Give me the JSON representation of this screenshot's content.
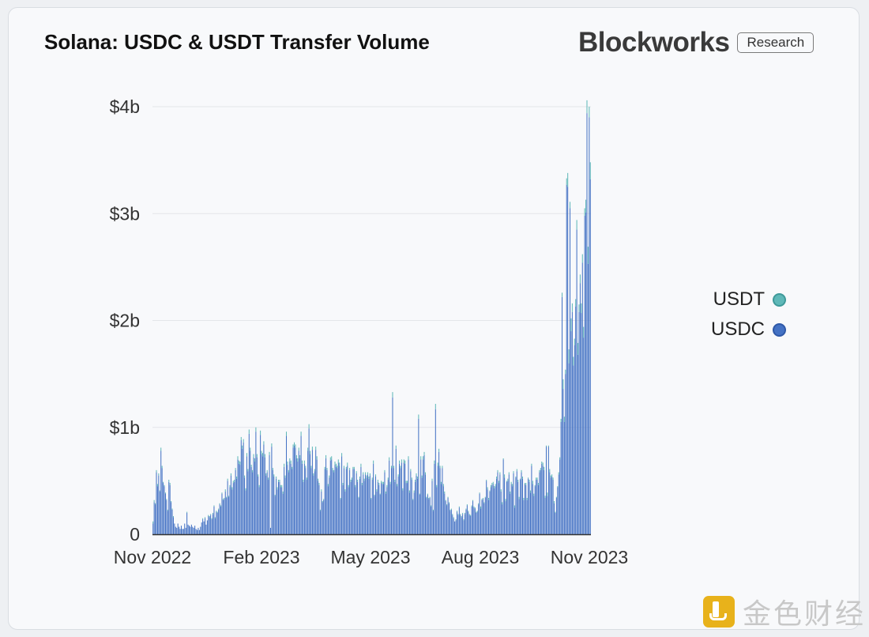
{
  "header": {
    "title": "Solana: USDC & USDT Transfer Volume",
    "brand_name": "Blockworks",
    "brand_tag": "Research"
  },
  "watermark": {
    "text": "金色财经"
  },
  "colors": {
    "usdc": "#4472c4",
    "usdt": "#5fb8b8",
    "grid": "#e4e6ea",
    "axis": "#333333"
  },
  "chart_data": {
    "type": "bar",
    "stacked": true,
    "title": "Solana: USDC & USDT Transfer Volume",
    "xlabel": "",
    "ylabel": "",
    "x_start": "2022-11-01",
    "x_ticks": [
      "Nov 2022",
      "Feb 2023",
      "May 2023",
      "Aug 2023",
      "Nov 2023"
    ],
    "y_ticks": [
      {
        "value": 0,
        "label": "0"
      },
      {
        "value": 1,
        "label": "$1b"
      },
      {
        "value": 2,
        "label": "$2b"
      },
      {
        "value": 3,
        "label": "$3b"
      },
      {
        "value": 4,
        "label": "$4b"
      }
    ],
    "ylim": [
      0,
      4
    ],
    "y_unit": "$b",
    "grid": true,
    "legend_position": "right",
    "series": [
      {
        "name": "USDC",
        "values": [
          0.1,
          0.3,
          0.28,
          0.58,
          0.45,
          0.55,
          0.4,
          0.78,
          0.62,
          0.48,
          0.45,
          0.38,
          0.32,
          0.22,
          0.49,
          0.46,
          0.3,
          0.23,
          0.16,
          0.1,
          0.07,
          0.06,
          0.1,
          0.07,
          0.05,
          0.08,
          0.05,
          0.05,
          0.1,
          0.06,
          0.2,
          0.09,
          0.08,
          0.07,
          0.09,
          0.07,
          0.06,
          0.08,
          0.05,
          0.04,
          0.06,
          0.04,
          0.07,
          0.11,
          0.14,
          0.12,
          0.15,
          0.09,
          0.13,
          0.17,
          0.16,
          0.18,
          0.14,
          0.19,
          0.26,
          0.15,
          0.21,
          0.2,
          0.23,
          0.28,
          0.26,
          0.38,
          0.32,
          0.33,
          0.4,
          0.34,
          0.5,
          0.35,
          0.44,
          0.55,
          0.42,
          0.48,
          0.49,
          0.6,
          0.52,
          0.7,
          0.66,
          0.65,
          0.88,
          0.8,
          0.86,
          0.53,
          0.41,
          0.73,
          0.59,
          0.94,
          0.78,
          0.63,
          0.58,
          0.72,
          0.68,
          0.96,
          0.72,
          0.54,
          0.44,
          0.93,
          0.75,
          0.73,
          0.84,
          0.72,
          0.55,
          0.58,
          0.51,
          0.74,
          0.06,
          0.82,
          0.6,
          0.54,
          0.36,
          0.52,
          0.42,
          0.49,
          0.49,
          0.44,
          0.44,
          0.38,
          0.63,
          0.53,
          0.92,
          0.65,
          0.58,
          0.68,
          0.66,
          0.61,
          0.81,
          0.83,
          0.81,
          0.71,
          0.68,
          0.78,
          0.71,
          0.92,
          0.66,
          0.49,
          0.66,
          0.62,
          0.51,
          0.78,
          0.99,
          0.75,
          0.62,
          0.79,
          0.55,
          0.59,
          0.79,
          0.7,
          0.5,
          0.46,
          0.22,
          0.4,
          0.3,
          0.32,
          0.61,
          0.71,
          0.6,
          0.45,
          0.53,
          0.69,
          0.7,
          0.6,
          0.58,
          0.65,
          0.63,
          0.62,
          0.67,
          0.64,
          0.33,
          0.73,
          0.46,
          0.62,
          0.4,
          0.61,
          0.64,
          0.44,
          0.6,
          0.49,
          0.51,
          0.61,
          0.61,
          0.44,
          0.57,
          0.49,
          0.34,
          0.52,
          0.63,
          0.46,
          0.56,
          0.5,
          0.56,
          0.53,
          0.56,
          0.52,
          0.55,
          0.33,
          0.51,
          0.66,
          0.36,
          0.54,
          0.4,
          0.49,
          0.46,
          0.37,
          0.48,
          0.47,
          0.47,
          0.58,
          0.38,
          0.44,
          0.51,
          0.69,
          0.47,
          0.62,
          1.28,
          0.62,
          0.49,
          0.8,
          0.45,
          0.54,
          0.66,
          0.62,
          0.67,
          0.41,
          0.67,
          0.66,
          0.48,
          0.48,
          0.7,
          0.39,
          0.59,
          0.51,
          0.32,
          0.39,
          0.49,
          0.55,
          0.52,
          1.08,
          0.37,
          0.7,
          0.53,
          0.7,
          0.74,
          0.56,
          0.34,
          0.37,
          0.33,
          0.34,
          0.26,
          0.5,
          0.22,
          0.66,
          1.17,
          0.44,
          0.64,
          0.77,
          0.62,
          0.47,
          0.62,
          0.45,
          0.38,
          0.31,
          0.27,
          0.34,
          0.29,
          0.22,
          0.23,
          0.18,
          0.15,
          0.12,
          0.13,
          0.21,
          0.18,
          0.25,
          0.18,
          0.16,
          0.19,
          0.13,
          0.19,
          0.23,
          0.27,
          0.21,
          0.18,
          0.17,
          0.26,
          0.31,
          0.25,
          0.24,
          0.2,
          0.21,
          0.28,
          0.38,
          0.24,
          0.32,
          0.33,
          0.29,
          0.34,
          0.5,
          0.42,
          0.32,
          0.4,
          0.44,
          0.46,
          0.47,
          0.43,
          0.45,
          0.52,
          0.58,
          0.48,
          0.56,
          0.4,
          0.28,
          0.7,
          0.53,
          0.31,
          0.49,
          0.5,
          0.56,
          0.38,
          0.47,
          0.45,
          0.57,
          0.25,
          0.53,
          0.59,
          0.49,
          0.33,
          0.51,
          0.58,
          0.52,
          0.32,
          0.47,
          0.46,
          0.32,
          0.52,
          0.49,
          0.39,
          0.64,
          0.47,
          0.36,
          0.45,
          0.51,
          0.51,
          0.46,
          0.58,
          0.6,
          0.66,
          0.64,
          0.6,
          0.34,
          0.82,
          0.36,
          0.82,
          0.58,
          0.53,
          0.54,
          0.51,
          0.29,
          0.2,
          0.34,
          0.44,
          0.56,
          0.7,
          1.05,
          2.22,
          1.36,
          1.05,
          1.5,
          3.27,
          3.25,
          1.6,
          3.05,
          1.9,
          2.08,
          1.58,
          1.77,
          2.13,
          2.85,
          1.68,
          2.08,
          2.35,
          2.07,
          2.54,
          1.84,
          2.98,
          3.01,
          3.94,
          2.53,
          3.9,
          3.32
        ],
        "color": "#4472c4"
      },
      {
        "name": "USDT",
        "values": [
          0.02,
          0.02,
          0.01,
          0.02,
          0.02,
          0.02,
          0.01,
          0.03,
          0.02,
          0.01,
          0.01,
          0.01,
          0.01,
          0.01,
          0.02,
          0.02,
          0.01,
          0.01,
          0.01,
          0.0,
          0.0,
          0.0,
          0.0,
          0.0,
          0.0,
          0.0,
          0.0,
          0.0,
          0.0,
          0.0,
          0.01,
          0.0,
          0.0,
          0.0,
          0.0,
          0.0,
          0.0,
          0.0,
          0.0,
          0.0,
          0.0,
          0.0,
          0.0,
          0.0,
          0.01,
          0.0,
          0.01,
          0.0,
          0.0,
          0.01,
          0.01,
          0.01,
          0.01,
          0.01,
          0.01,
          0.01,
          0.01,
          0.01,
          0.01,
          0.01,
          0.01,
          0.01,
          0.01,
          0.01,
          0.02,
          0.01,
          0.02,
          0.01,
          0.02,
          0.02,
          0.02,
          0.02,
          0.02,
          0.02,
          0.02,
          0.03,
          0.03,
          0.03,
          0.03,
          0.03,
          0.03,
          0.02,
          0.02,
          0.03,
          0.02,
          0.04,
          0.03,
          0.02,
          0.02,
          0.03,
          0.03,
          0.04,
          0.03,
          0.02,
          0.02,
          0.04,
          0.03,
          0.03,
          0.03,
          0.03,
          0.02,
          0.02,
          0.02,
          0.03,
          0.0,
          0.03,
          0.02,
          0.02,
          0.01,
          0.02,
          0.02,
          0.02,
          0.02,
          0.02,
          0.02,
          0.02,
          0.03,
          0.02,
          0.04,
          0.03,
          0.02,
          0.03,
          0.03,
          0.02,
          0.03,
          0.03,
          0.03,
          0.03,
          0.03,
          0.03,
          0.03,
          0.04,
          0.03,
          0.02,
          0.03,
          0.02,
          0.02,
          0.03,
          0.04,
          0.03,
          0.02,
          0.03,
          0.02,
          0.02,
          0.03,
          0.03,
          0.02,
          0.02,
          0.01,
          0.02,
          0.01,
          0.01,
          0.02,
          0.03,
          0.02,
          0.02,
          0.02,
          0.03,
          0.03,
          0.02,
          0.02,
          0.03,
          0.03,
          0.02,
          0.03,
          0.03,
          0.01,
          0.03,
          0.02,
          0.02,
          0.02,
          0.02,
          0.03,
          0.02,
          0.02,
          0.02,
          0.02,
          0.02,
          0.02,
          0.02,
          0.02,
          0.02,
          0.01,
          0.02,
          0.03,
          0.02,
          0.02,
          0.02,
          0.02,
          0.02,
          0.02,
          0.02,
          0.02,
          0.01,
          0.02,
          0.03,
          0.01,
          0.02,
          0.02,
          0.02,
          0.02,
          0.01,
          0.02,
          0.02,
          0.02,
          0.02,
          0.02,
          0.02,
          0.02,
          0.03,
          0.02,
          0.02,
          0.05,
          0.02,
          0.02,
          0.03,
          0.02,
          0.02,
          0.03,
          0.02,
          0.03,
          0.02,
          0.03,
          0.03,
          0.02,
          0.02,
          0.03,
          0.02,
          0.02,
          0.02,
          0.01,
          0.02,
          0.02,
          0.02,
          0.02,
          0.04,
          0.01,
          0.03,
          0.02,
          0.03,
          0.03,
          0.02,
          0.01,
          0.01,
          0.01,
          0.01,
          0.01,
          0.02,
          0.01,
          0.03,
          0.05,
          0.02,
          0.03,
          0.03,
          0.02,
          0.02,
          0.02,
          0.02,
          0.02,
          0.01,
          0.01,
          0.01,
          0.01,
          0.01,
          0.01,
          0.01,
          0.01,
          0.0,
          0.01,
          0.01,
          0.01,
          0.01,
          0.01,
          0.01,
          0.01,
          0.01,
          0.01,
          0.01,
          0.01,
          0.01,
          0.01,
          0.01,
          0.01,
          0.01,
          0.01,
          0.01,
          0.01,
          0.01,
          0.01,
          0.01,
          0.02,
          0.01,
          0.01,
          0.01,
          0.01,
          0.01,
          0.02,
          0.02,
          0.01,
          0.02,
          0.02,
          0.02,
          0.02,
          0.02,
          0.02,
          0.02,
          0.02,
          0.02,
          0.02,
          0.02,
          0.01,
          0.03,
          0.02,
          0.01,
          0.02,
          0.02,
          0.02,
          0.02,
          0.02,
          0.02,
          0.02,
          0.01,
          0.02,
          0.02,
          0.02,
          0.01,
          0.02,
          0.02,
          0.02,
          0.01,
          0.02,
          0.02,
          0.01,
          0.02,
          0.02,
          0.02,
          0.03,
          0.02,
          0.01,
          0.02,
          0.02,
          0.02,
          0.02,
          0.02,
          0.02,
          0.03,
          0.03,
          0.02,
          0.01,
          0.03,
          0.01,
          0.03,
          0.02,
          0.02,
          0.02,
          0.02,
          0.01,
          0.01,
          0.01,
          0.02,
          0.02,
          0.03,
          0.04,
          0.09,
          0.05,
          0.04,
          0.06,
          0.13,
          0.13,
          0.06,
          0.12,
          0.08,
          0.08,
          0.06,
          0.07,
          0.09,
          0.11,
          0.07,
          0.08,
          0.09,
          0.08,
          0.1,
          0.07,
          0.12,
          0.12,
          0.16,
          0.1,
          0.16,
          0.13
        ],
        "color": "#5fb8b8"
      }
    ]
  }
}
